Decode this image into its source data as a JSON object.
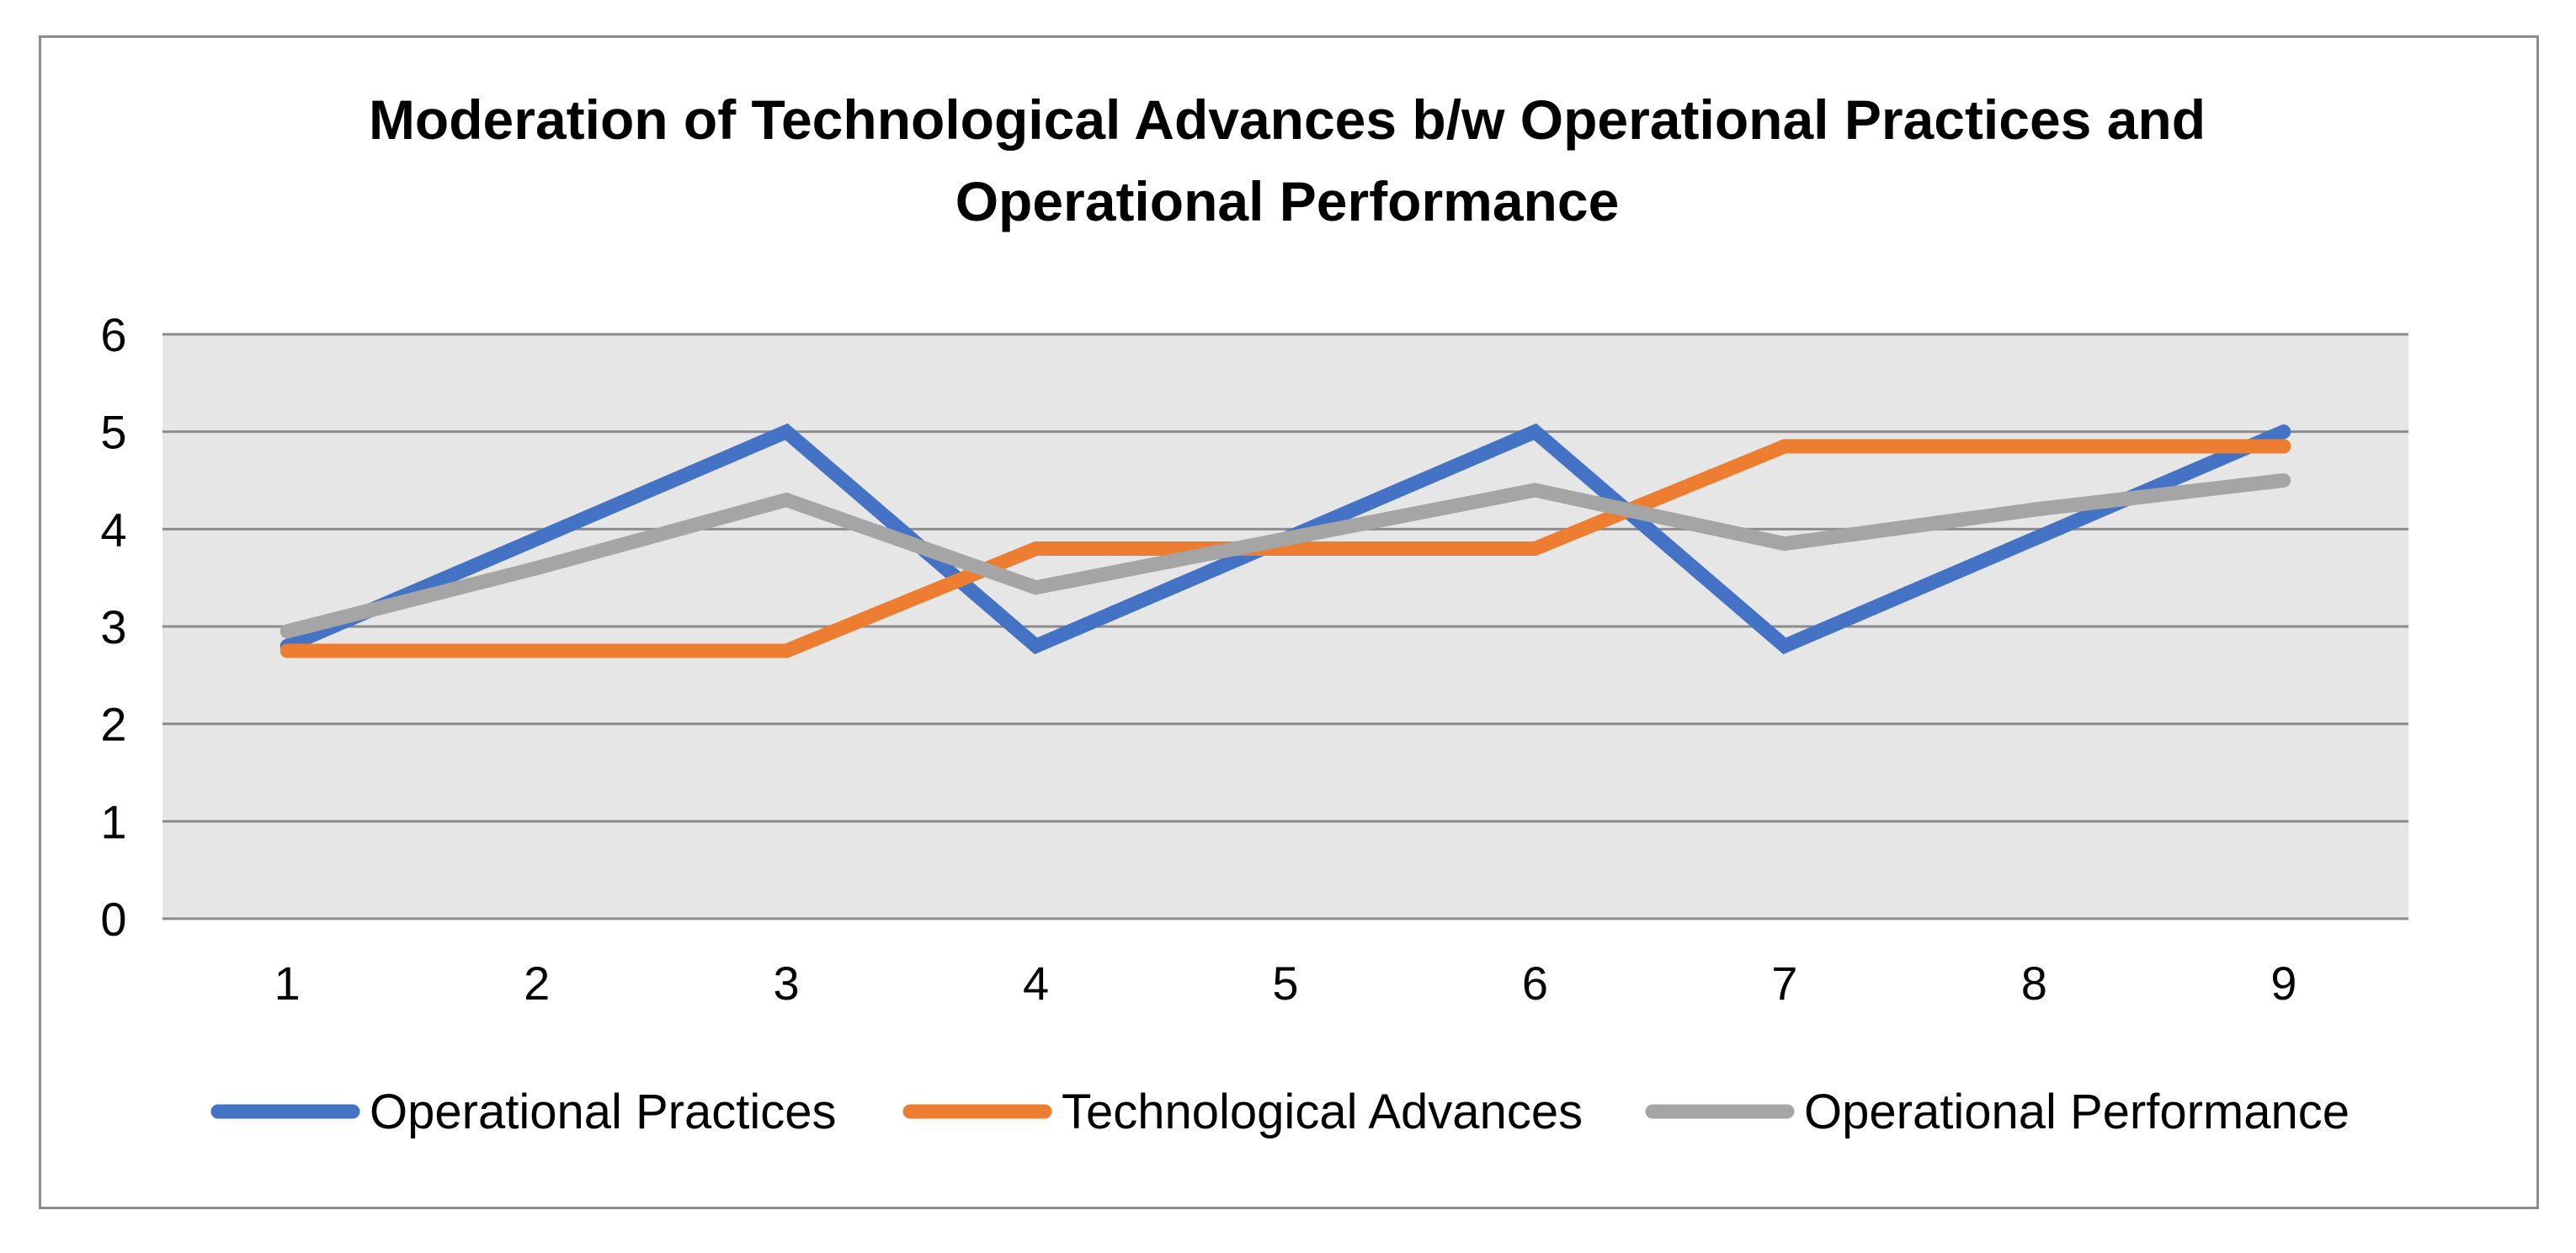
{
  "chart_data": {
    "type": "line",
    "title_lines": [
      "Moderation of Technological Advances b/w Operational Practices and",
      "Operational Performance"
    ],
    "xlabel": "",
    "ylabel": "",
    "categories": [
      "1",
      "2",
      "3",
      "4",
      "5",
      "6",
      "7",
      "8",
      "9"
    ],
    "ylim": [
      0,
      6
    ],
    "yticks": [
      "0",
      "1",
      "2",
      "3",
      "4",
      "5",
      "6"
    ],
    "grid": true,
    "legend_position": "bottom",
    "series": [
      {
        "name": "Operational Practices",
        "color": "#4472C4",
        "values": [
          2.8,
          3.9,
          5.0,
          2.8,
          3.9,
          5.0,
          2.8,
          3.9,
          5.0
        ]
      },
      {
        "name": "Technological Advances",
        "color": "#ED7D31",
        "values": [
          2.75,
          2.75,
          2.75,
          3.8,
          3.8,
          3.8,
          4.85,
          4.85,
          4.85
        ]
      },
      {
        "name": "Operational Performance",
        "color": "#A5A5A5",
        "values": [
          2.95,
          3.6,
          4.3,
          3.4,
          3.9,
          4.4,
          3.85,
          4.2,
          4.5
        ]
      }
    ],
    "plot_background": "#E7E6E6",
    "gridline_color": "#8C8C8C"
  }
}
